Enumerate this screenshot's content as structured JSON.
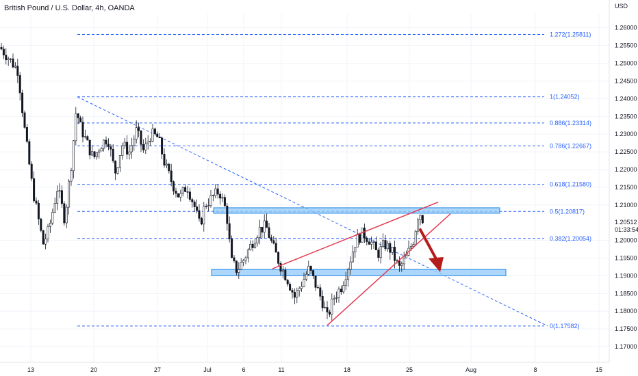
{
  "chart_data": {
    "type": "candlestick",
    "title": "British Pound / U.S. Dollar, 4h, OANDA",
    "currency_label": "USD",
    "y_range": [
      1.1675,
      1.264
    ],
    "y_ticks": [
      "1.26000",
      "1.25500",
      "1.25000",
      "1.24500",
      "1.24000",
      "1.23500",
      "1.23000",
      "1.22500",
      "1.22000",
      "1.21500",
      "1.21000",
      "1.20000",
      "1.19500",
      "1.19000",
      "1.18500",
      "1.18000",
      "1.17500",
      "1.17000"
    ],
    "x_ticks": [
      "13",
      "20",
      "27",
      "Jul",
      "6",
      "11",
      "18",
      "25",
      "Aug",
      "8",
      "15"
    ],
    "current_price": "1.20512",
    "countdown": "01:33:54",
    "fib_levels": [
      {
        "label": "1.272(1.25811)",
        "price": 1.25811
      },
      {
        "label": "1(1.24052)",
        "price": 1.24052
      },
      {
        "label": "0.886(1.23314)",
        "price": 1.23314
      },
      {
        "label": "0.786(1.22667)",
        "price": 1.22667
      },
      {
        "label": "0.618(1.21580)",
        "price": 1.2158
      },
      {
        "label": "0.5(1.20817)",
        "price": 1.20817
      },
      {
        "label": "0.382(1.20054)",
        "price": 1.20054
      },
      {
        "label": "0(1.17582)",
        "price": 1.17582
      }
    ],
    "zones": [
      {
        "name": "resistance-zone",
        "from": 1.2077,
        "to": 1.2092
      },
      {
        "name": "support-zone",
        "from": 1.19,
        "to": 1.1918
      }
    ],
    "path": [
      {
        "day": 0,
        "price": 1.2545
      },
      {
        "day": 1,
        "price": 1.252
      },
      {
        "day": 2.5,
        "price": 1.248
      },
      {
        "day": 3.5,
        "price": 1.23
      },
      {
        "day": 4.5,
        "price": 1.215
      },
      {
        "day": 6,
        "price": 1.199
      },
      {
        "day": 6.8,
        "price": 1.203
      },
      {
        "day": 8,
        "price": 1.215
      },
      {
        "day": 9,
        "price": 1.206
      },
      {
        "day": 10,
        "price": 1.223
      },
      {
        "day": 10.6,
        "price": 1.237
      },
      {
        "day": 11.2,
        "price": 1.232
      },
      {
        "day": 12,
        "price": 1.228
      },
      {
        "day": 13,
        "price": 1.223
      },
      {
        "day": 14,
        "price": 1.227
      },
      {
        "day": 15,
        "price": 1.229
      },
      {
        "day": 16,
        "price": 1.219
      },
      {
        "day": 17,
        "price": 1.227
      },
      {
        "day": 18,
        "price": 1.225
      },
      {
        "day": 19,
        "price": 1.231
      },
      {
        "day": 20,
        "price": 1.225
      },
      {
        "day": 21,
        "price": 1.23
      },
      {
        "day": 22,
        "price": 1.229
      },
      {
        "day": 23,
        "price": 1.221
      },
      {
        "day": 24,
        "price": 1.216
      },
      {
        "day": 25,
        "price": 1.212
      },
      {
        "day": 26,
        "price": 1.2155
      },
      {
        "day": 27,
        "price": 1.21
      },
      {
        "day": 27.8,
        "price": 1.204
      },
      {
        "day": 28.5,
        "price": 1.21
      },
      {
        "day": 29.5,
        "price": 1.212
      },
      {
        "day": 30.5,
        "price": 1.214
      },
      {
        "day": 31.5,
        "price": 1.208
      },
      {
        "day": 32.2,
        "price": 1.194
      },
      {
        "day": 33,
        "price": 1.1915
      },
      {
        "day": 34,
        "price": 1.195
      },
      {
        "day": 35,
        "price": 1.199
      },
      {
        "day": 36,
        "price": 1.203
      },
      {
        "day": 37,
        "price": 1.204
      },
      {
        "day": 38,
        "price": 1.198
      },
      {
        "day": 39,
        "price": 1.193
      },
      {
        "day": 40,
        "price": 1.189
      },
      {
        "day": 41,
        "price": 1.184
      },
      {
        "day": 42,
        "price": 1.188
      },
      {
        "day": 43,
        "price": 1.192
      },
      {
        "day": 44,
        "price": 1.187
      },
      {
        "day": 45,
        "price": 1.182
      },
      {
        "day": 45.5,
        "price": 1.178
      },
      {
        "day": 46.5,
        "price": 1.184
      },
      {
        "day": 47.5,
        "price": 1.187
      },
      {
        "day": 48.5,
        "price": 1.193
      },
      {
        "day": 49.5,
        "price": 1.2
      },
      {
        "day": 50.5,
        "price": 1.202
      },
      {
        "day": 51.5,
        "price": 1.2
      },
      {
        "day": 52.5,
        "price": 1.196
      },
      {
        "day": 53.5,
        "price": 1.199
      },
      {
        "day": 54.5,
        "price": 1.197
      },
      {
        "day": 55.5,
        "price": 1.192
      },
      {
        "day": 56.5,
        "price": 1.195
      },
      {
        "day": 57.5,
        "price": 1.2
      },
      {
        "day": 58.3,
        "price": 1.2085
      },
      {
        "day": 59,
        "price": 1.2051
      }
    ]
  }
}
